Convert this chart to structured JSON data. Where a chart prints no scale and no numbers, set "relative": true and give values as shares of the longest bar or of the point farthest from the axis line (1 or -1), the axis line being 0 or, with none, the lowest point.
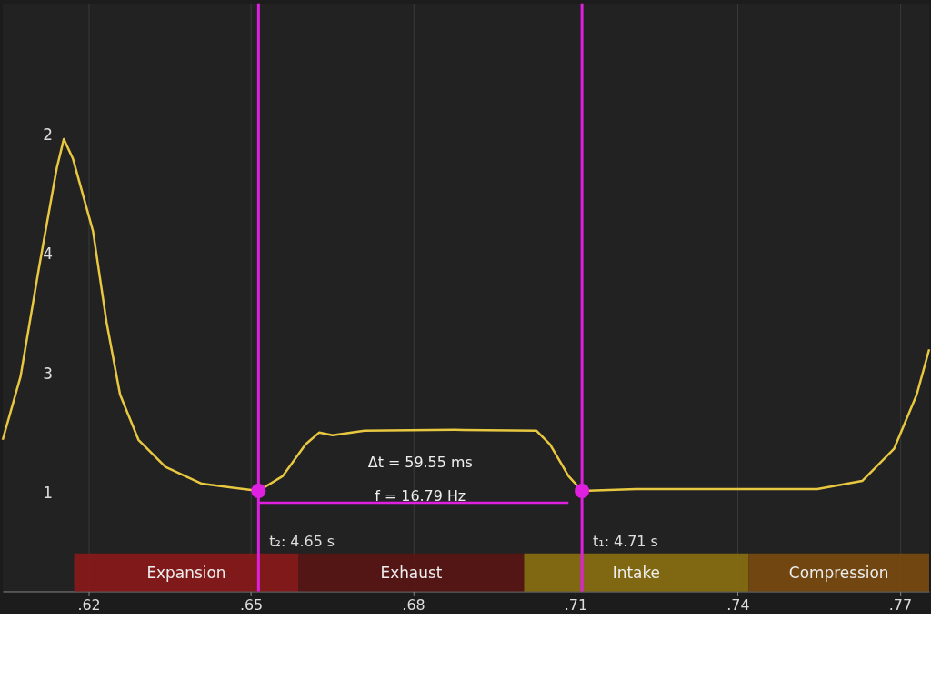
{
  "chart_data": {
    "type": "line",
    "relative": true,
    "x": [
      0.6041,
      0.6074,
      0.6108,
      0.6141,
      0.6154,
      0.6171,
      0.6208,
      0.6233,
      0.6258,
      0.6292,
      0.6342,
      0.6409,
      0.6514,
      0.6559,
      0.6601,
      0.6626,
      0.6651,
      0.671,
      0.6877,
      0.7028,
      0.7053,
      0.7087,
      0.7112,
      0.7212,
      0.7547,
      0.763,
      0.7689,
      0.7731,
      0.7754
    ],
    "series": [
      {
        "color": "#e8c840",
        "values": [
          0.335,
          0.475,
          0.715,
          0.936,
          1.0,
          0.956,
          0.796,
          0.595,
          0.435,
          0.335,
          0.275,
          0.238,
          0.222,
          0.255,
          0.325,
          0.351,
          0.345,
          0.355,
          0.357,
          0.355,
          0.325,
          0.255,
          0.222,
          0.226,
          0.226,
          0.244,
          0.315,
          0.435,
          0.535
        ]
      },
      {
        "type": "line",
        "color": "#e020e0",
        "x": [
          0.6514,
          0.7087
        ],
        "values": [
          0.196,
          0.196
        ]
      }
    ],
    "xlim": [
      0.6041,
      0.7754
    ],
    "xticks": [
      {
        "value": 0.62,
        "label": ".62"
      },
      {
        "value": 0.65,
        "label": ".65"
      },
      {
        "value": 0.68,
        "label": ".68"
      },
      {
        "value": 0.71,
        "label": ".71"
      },
      {
        "value": 0.74,
        "label": ".74"
      },
      {
        "value": 0.77,
        "label": ".77"
      }
    ],
    "grid": "x",
    "marker": "none",
    "line_style": "solid",
    "ref_lines": [
      {
        "axis": "x",
        "value": 0.6514,
        "color": "#e020e0"
      },
      {
        "axis": "x",
        "value": 0.7112,
        "color": "#e020e0"
      }
    ],
    "bands": [
      {
        "axis": "x",
        "from": 0.6173,
        "to": 0.6588,
        "label": "Expansion",
        "color": "#8b1a1a"
      },
      {
        "axis": "x",
        "from": 0.6588,
        "to": 0.7005,
        "label": "Exhaust",
        "color": "#5a1414"
      },
      {
        "axis": "x",
        "from": 0.7005,
        "to": 0.742,
        "label": "Intake",
        "color": "#8a7010"
      },
      {
        "axis": "x",
        "from": 0.742,
        "to": 0.7754,
        "label": "Compression",
        "color": "#7a4a10"
      }
    ],
    "annotations": [
      "Δt = 59.55 ms",
      "f = 16.79 Hz",
      "2",
      "4",
      "3",
      "1",
      {
        "text": "t₂: 4.65 s",
        "x": 0.6514
      },
      {
        "text": "t₁: 4.71 s",
        "x": 0.7112
      }
    ]
  }
}
